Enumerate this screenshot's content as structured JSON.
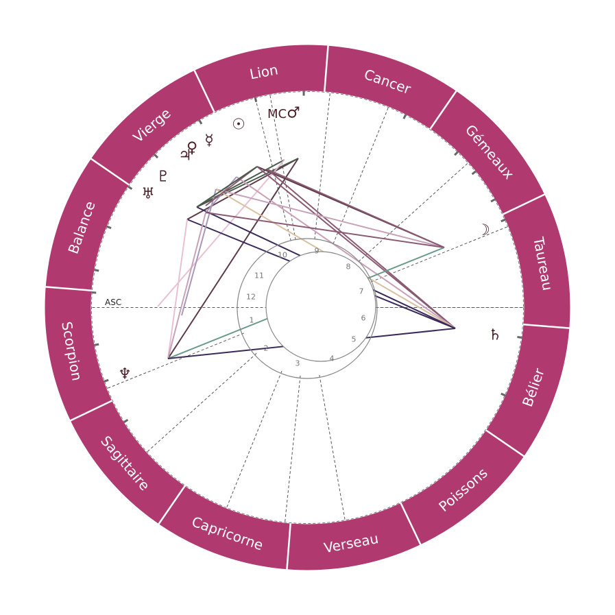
{
  "zodiac": {
    "ring_color": "#b03a70",
    "signs": [
      "Bélier",
      "Taureau",
      "Gémeaux",
      "Cancer",
      "Lion",
      "Vierge",
      "Balance",
      "Scorpion",
      "Sagittaire",
      "Capricorne",
      "Verseau",
      "Poissons"
    ]
  },
  "angles": {
    "asc_label": "ASC",
    "mc_label": "MC"
  },
  "houses": {
    "numbers": [
      "1",
      "2",
      "3",
      "4",
      "5",
      "6",
      "7",
      "8",
      "9",
      "10",
      "11",
      "12"
    ]
  },
  "planets": [
    {
      "name": "sun-icon",
      "glyph": "☉"
    },
    {
      "name": "moon-icon",
      "glyph": "☽"
    },
    {
      "name": "mercury-icon",
      "glyph": "☿"
    },
    {
      "name": "venus-icon",
      "glyph": "♀"
    },
    {
      "name": "mars-icon",
      "glyph": "♂"
    },
    {
      "name": "jupiter-icon",
      "glyph": "♃"
    },
    {
      "name": "saturn-icon",
      "glyph": "♄"
    },
    {
      "name": "uranus-icon",
      "glyph": "♅"
    },
    {
      "name": "neptune-icon",
      "glyph": "♆"
    },
    {
      "name": "pluto-icon",
      "glyph": "♇"
    }
  ],
  "aspect_colors": [
    "#5c3a4a",
    "#8a5a72",
    "#c8a0b8",
    "#e8c0d4",
    "#3a2a5a",
    "#6a9a8a",
    "#d8c0a0",
    "#a898b8",
    "#4a5a4a"
  ]
}
